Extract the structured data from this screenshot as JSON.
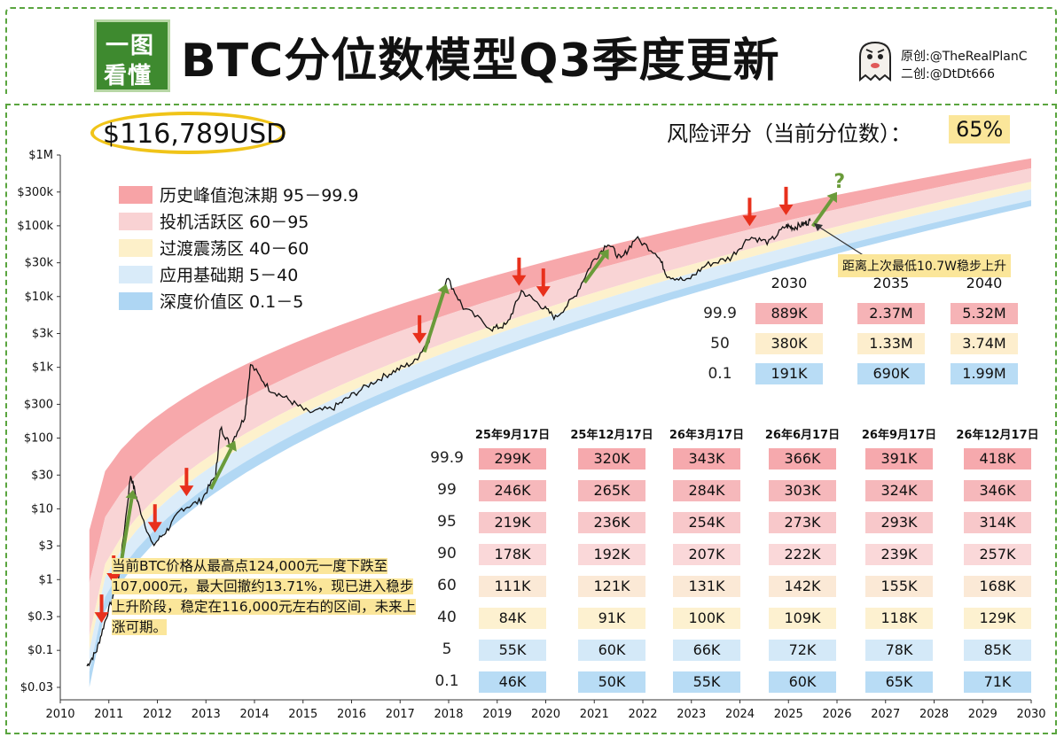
{
  "header": {
    "logo_line1": "一图",
    "logo_line2": "看懂",
    "title": "BTC分位数模型Q3季度更新",
    "credit_original": "原创:@TheRealPlanC",
    "credit_second": "二创:@DtDt666"
  },
  "price": "$116,789USD",
  "risk": {
    "label": "风险评分（当前分位数）：",
    "value": "65%"
  },
  "legend": [
    {
      "label": "历史峰值泡沫期 95－99.9",
      "color": "#f7a3a6"
    },
    {
      "label": "投机活跃区 60－95",
      "color": "#f9d2d3"
    },
    {
      "label": "过渡震荡区 40－60",
      "color": "#fdf0c9"
    },
    {
      "label": "应用基础期 5－40",
      "color": "#d9ebf9"
    },
    {
      "label": "深度价值区 0.1－5",
      "color": "#aed6f3"
    }
  ],
  "distance_note": "距离上次最低10.7W稳步上升",
  "question_mark": "?",
  "annotation": "当前BTC价格从最高点124,000元一度下跌至107,000元，最大回撤约13.71%，现已进入稳步上升阶段，稳定在116,000元左右的区间，未来上涨可期。",
  "long_term_table": {
    "columns": [
      "2030",
      "2035",
      "2040"
    ],
    "rows": [
      {
        "label": "99.9",
        "values": [
          "889K",
          "2.37M",
          "5.32M"
        ]
      },
      {
        "label": "50",
        "values": [
          "380K",
          "1.33M",
          "3.74M"
        ]
      },
      {
        "label": "0.1",
        "values": [
          "191K",
          "690K",
          "1.99M"
        ]
      }
    ]
  },
  "quarter_table": {
    "columns": [
      "25年9月17日",
      "25年12月17日",
      "26年3月17日",
      "26年6月17日",
      "26年9月17日",
      "26年12月17日"
    ],
    "rows": [
      {
        "label": "99.9",
        "values": [
          "299K",
          "320K",
          "343K",
          "366K",
          "391K",
          "418K"
        ]
      },
      {
        "label": "99",
        "values": [
          "246K",
          "265K",
          "284K",
          "303K",
          "324K",
          "346K"
        ]
      },
      {
        "label": "95",
        "values": [
          "219K",
          "236K",
          "254K",
          "273K",
          "293K",
          "314K"
        ]
      },
      {
        "label": "90",
        "values": [
          "178K",
          "192K",
          "207K",
          "222K",
          "239K",
          "257K"
        ]
      },
      {
        "label": "60",
        "values": [
          "111K",
          "121K",
          "131K",
          "142K",
          "155K",
          "168K"
        ]
      },
      {
        "label": "40",
        "values": [
          "84K",
          "91K",
          "100K",
          "109K",
          "118K",
          "129K"
        ]
      },
      {
        "label": "5",
        "values": [
          "55K",
          "60K",
          "66K",
          "72K",
          "78K",
          "85K"
        ]
      },
      {
        "label": "0.1",
        "values": [
          "46K",
          "50K",
          "55K",
          "60K",
          "65K",
          "71K"
        ]
      }
    ]
  },
  "chart_data": {
    "type": "line",
    "title": "BTC分位数模型Q3季度更新",
    "xlabel": "",
    "ylabel": "",
    "y_scale": "log",
    "xlim": [
      2010,
      2030
    ],
    "ylim": [
      0.02,
      1000000
    ],
    "x_ticks": [
      "2010",
      "2011",
      "2012",
      "2013",
      "2014",
      "2015",
      "2016",
      "2017",
      "2018",
      "2019",
      "2020",
      "2021",
      "2022",
      "2023",
      "2024",
      "2025",
      "2026",
      "2027",
      "2028",
      "2029",
      "2030"
    ],
    "y_ticks": [
      {
        "value": 1000000,
        "label": "$1M"
      },
      {
        "value": 300000,
        "label": "$300k"
      },
      {
        "value": 100000,
        "label": "$100k"
      },
      {
        "value": 30000,
        "label": "$30k"
      },
      {
        "value": 10000,
        "label": "$10k"
      },
      {
        "value": 3000,
        "label": "$3k"
      },
      {
        "value": 1000,
        "label": "$1k"
      },
      {
        "value": 300,
        "label": "$300"
      },
      {
        "value": 100,
        "label": "$100"
      },
      {
        "value": 30,
        "label": "$30"
      },
      {
        "value": 10,
        "label": "$10"
      },
      {
        "value": 3,
        "label": "$3"
      },
      {
        "value": 1,
        "label": "$1"
      },
      {
        "value": 0.3,
        "label": "$0.3"
      },
      {
        "value": 0.1,
        "label": "$0.1"
      },
      {
        "value": 0.03,
        "label": "$0.03"
      }
    ],
    "quantile_bands": [
      {
        "name": "95-99.9",
        "color": "#f7a3a6",
        "start": {
          "x": 2010.6,
          "lower": 0.9,
          "upper": 5
        },
        "end": {
          "x": 2030,
          "lower": 650000,
          "upper": 900000
        }
      },
      {
        "name": "60-95",
        "color": "#f9d2d3",
        "start": {
          "x": 2010.6,
          "lower": 0.16,
          "upper": 0.9
        },
        "end": {
          "x": 2030,
          "lower": 420000,
          "upper": 650000
        }
      },
      {
        "name": "40-60",
        "color": "#fdf0c9",
        "start": {
          "x": 2010.6,
          "lower": 0.1,
          "upper": 0.16
        },
        "end": {
          "x": 2030,
          "lower": 330000,
          "upper": 420000
        }
      },
      {
        "name": "5-40",
        "color": "#d9ebf9",
        "start": {
          "x": 2010.6,
          "lower": 0.05,
          "upper": 0.1
        },
        "end": {
          "x": 2030,
          "lower": 230000,
          "upper": 330000
        }
      },
      {
        "name": "0.1-5",
        "color": "#aed6f3",
        "start": {
          "x": 2010.6,
          "lower": 0.03,
          "upper": 0.05
        },
        "end": {
          "x": 2030,
          "lower": 190000,
          "upper": 230000
        }
      }
    ],
    "price_series": {
      "x": [
        2010.55,
        2010.75,
        2010.95,
        2011.2,
        2011.45,
        2011.6,
        2011.9,
        2012.2,
        2012.5,
        2012.9,
        2013.2,
        2013.3,
        2013.5,
        2013.8,
        2013.92,
        2014.3,
        2014.7,
        2015.1,
        2015.6,
        2016.0,
        2016.5,
        2016.9,
        2017.3,
        2017.6,
        2017.96,
        2018.3,
        2018.9,
        2019.2,
        2019.5,
        2019.9,
        2020.2,
        2020.6,
        2020.95,
        2021.28,
        2021.55,
        2021.85,
        2022.3,
        2022.5,
        2022.9,
        2023.3,
        2023.8,
        2024.2,
        2024.6,
        2024.95,
        2025.1,
        2025.3,
        2025.45
      ],
      "y": [
        0.06,
        0.1,
        0.3,
        1,
        30,
        12,
        3,
        5,
        10,
        13,
        30,
        140,
        80,
        200,
        1100,
        500,
        350,
        230,
        260,
        400,
        650,
        900,
        1200,
        2500,
        19000,
        7000,
        3500,
        4000,
        12000,
        7500,
        5000,
        10000,
        30000,
        58000,
        33000,
        67000,
        40000,
        20000,
        16500,
        28000,
        35000,
        70000,
        58000,
        100000,
        94000,
        105000,
        117000
      ]
    },
    "arrows_down_years": [
      2010.85,
      2011.1,
      2011.95,
      2012.6,
      2017.4,
      2019.45,
      2019.95,
      2024.2,
      2024.95
    ],
    "arrows_up_segments": [
      [
        2011.25,
        2011.5
      ],
      [
        2013.1,
        2013.6
      ],
      [
        2017.5,
        2017.95
      ],
      [
        2020.8,
        2021.3
      ],
      [
        2025.5,
        2026.0
      ]
    ]
  }
}
